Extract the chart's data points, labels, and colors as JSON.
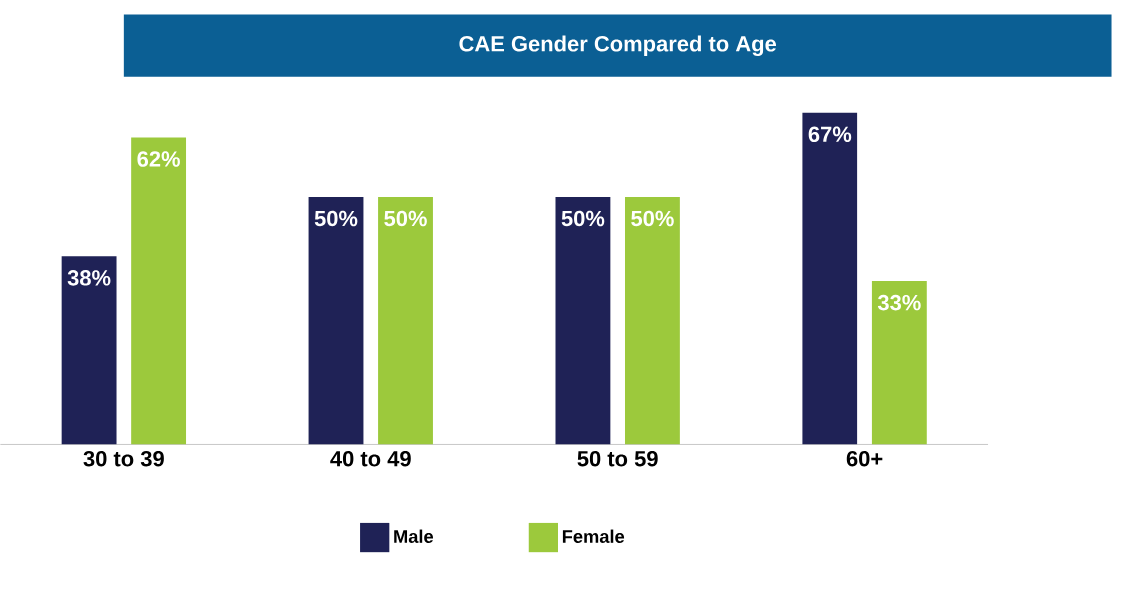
{
  "chart_data": {
    "type": "bar",
    "title": "CAE Gender Compared to Age",
    "categories": [
      "30 to 39",
      "40 to 49",
      "50 to 59",
      "60+"
    ],
    "series": [
      {
        "name": "Male",
        "color": "#1f2256",
        "values": [
          38,
          50,
          50,
          67
        ],
        "value_labels": [
          "38%",
          "50%",
          "50%",
          "67%"
        ]
      },
      {
        "name": "Female",
        "color": "#9cc93c",
        "values": [
          62,
          50,
          50,
          33
        ],
        "value_labels": [
          "62%",
          "50%",
          "50%",
          "33%"
        ]
      }
    ],
    "legend": "bottom"
  }
}
